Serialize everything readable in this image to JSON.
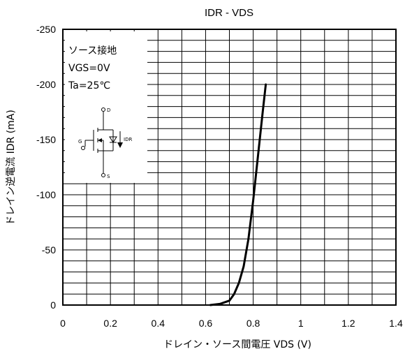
{
  "chart_data": {
    "type": "line",
    "title": "IDR - VDS",
    "xlabel": "ドレイン・ソース間電圧  VDS (V)",
    "ylabel": "ドレイン逆電流   IDR (mA)",
    "xlim": [
      0,
      1.4
    ],
    "ylim": [
      0,
      -250
    ],
    "x_ticks": [
      "0",
      "0.2",
      "0.4",
      "0.6",
      "0.8",
      "1",
      "1.2",
      "1.4"
    ],
    "y_ticks": [
      "0",
      "-50",
      "-100",
      "-150",
      "-200",
      "-250"
    ],
    "grid": true,
    "legend_position": "top-left",
    "conditions": [
      "ソース接地",
      "VGS=0V",
      "Ta=25℃"
    ],
    "schematic_labels": {
      "drain": "D",
      "gate": "G",
      "source": "S",
      "current": "IDR"
    },
    "series": [
      {
        "x": [
          0.62,
          0.66,
          0.7,
          0.72,
          0.74,
          0.76,
          0.78,
          0.8,
          0.82,
          0.84,
          0.853
        ],
        "y": [
          0,
          -1,
          -4,
          -10,
          -20,
          -35,
          -60,
          -95,
          -135,
          -175,
          -200
        ]
      }
    ]
  }
}
